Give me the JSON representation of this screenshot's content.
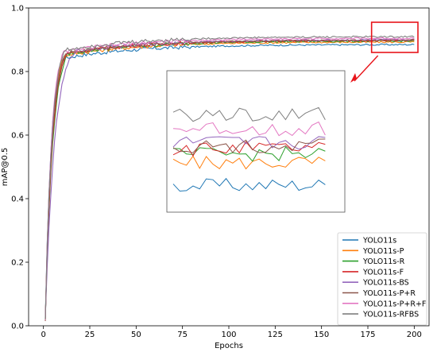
{
  "chart_data": {
    "type": "line",
    "xlabel": "Epochs",
    "ylabel": "mAP@0.5",
    "xlim": [
      -8,
      208
    ],
    "ylim": [
      0.0,
      1.0
    ],
    "xticks": [
      0,
      25,
      50,
      75,
      100,
      125,
      150,
      175,
      200
    ],
    "xtick_labels": [
      "0",
      "25",
      "50",
      "75",
      "100",
      "125",
      "150",
      "175",
      "200"
    ],
    "yticks": [
      0.0,
      0.2,
      0.4,
      0.6,
      0.8,
      1.0
    ],
    "ytick_labels": [
      "0.0",
      "0.2",
      "0.4",
      "0.6",
      "0.8",
      "1.0"
    ],
    "grid": false,
    "legend_position": "lower-right",
    "highlight_region": {
      "x": [
        177,
        202
      ],
      "y": [
        0.86,
        0.955
      ]
    },
    "series": [
      {
        "name": "YOLO11s",
        "color": "#1f77b4",
        "final": 0.885,
        "start": 0.02,
        "rise_epochs": 3.2
      },
      {
        "name": "YOLO11s-P",
        "color": "#ff7f0e",
        "final": 0.893,
        "start": 0.02,
        "rise_epochs": 3.4
      },
      {
        "name": "YOLO11s-R",
        "color": "#2ca02c",
        "final": 0.896,
        "start": 0.02,
        "rise_epochs": 4.0
      },
      {
        "name": "YOLO11s-F",
        "color": "#d62728",
        "final": 0.898,
        "start": 0.02,
        "rise_epochs": 3.8
      },
      {
        "name": "YOLO11s-BS",
        "color": "#9467bd",
        "final": 0.9,
        "start": 0.02,
        "rise_epochs": 5.0
      },
      {
        "name": "YOLO11s-P+R",
        "color": "#8c564b",
        "final": 0.899,
        "start": 0.02,
        "rise_epochs": 3.6
      },
      {
        "name": "YOLO11s-P+R+F",
        "color": "#e377c2",
        "final": 0.905,
        "start": 0.02,
        "rise_epochs": 3.3
      },
      {
        "name": "YOLO11s-RFBS",
        "color": "#7f7f7f",
        "final": 0.91,
        "start": 0.02,
        "rise_epochs": 3.5
      }
    ],
    "epochs": 200
  }
}
